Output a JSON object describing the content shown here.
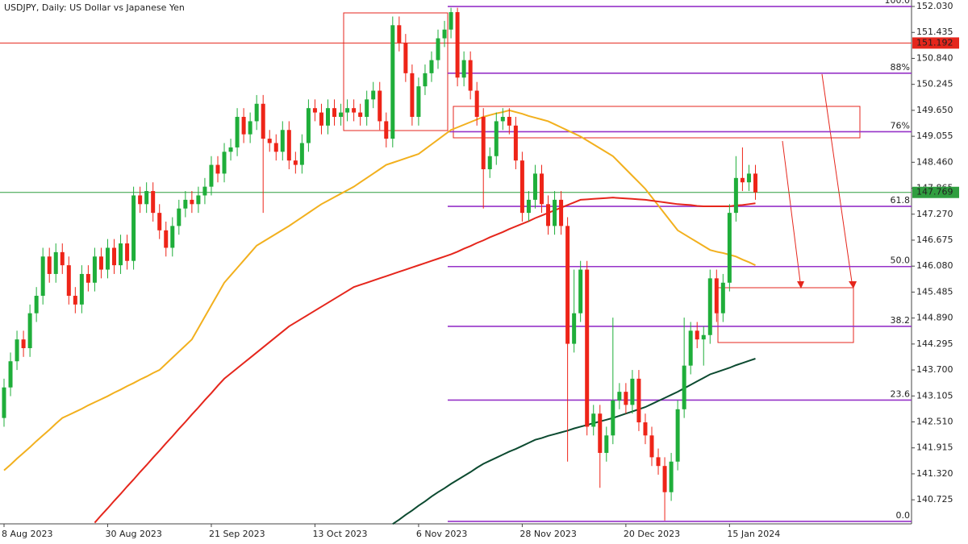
{
  "chart_data": {
    "type": "candlestick",
    "title": "USDJPY, Daily:  US Dollar vs Japanese Yen",
    "categories": [
      "8 Aug 2023",
      null,
      null,
      null,
      null,
      null,
      null,
      null,
      null,
      null,
      null,
      null,
      null,
      null,
      null,
      null,
      "30 Aug 2023",
      null,
      null,
      null,
      null,
      null,
      null,
      null,
      null,
      null,
      null,
      null,
      null,
      null,
      null,
      null,
      "21 Sep 2023",
      null,
      null,
      null,
      null,
      null,
      null,
      null,
      null,
      null,
      null,
      null,
      null,
      null,
      null,
      null,
      "13 Oct 2023",
      null,
      null,
      null,
      null,
      null,
      null,
      null,
      null,
      null,
      null,
      null,
      null,
      null,
      null,
      null,
      "6 Nov 2023",
      null,
      null,
      null,
      null,
      null,
      null,
      null,
      null,
      null,
      null,
      null,
      null,
      null,
      null,
      null,
      "28 Nov 2023",
      null,
      null,
      null,
      null,
      null,
      null,
      null,
      null,
      null,
      null,
      null,
      null,
      null,
      null,
      null,
      "20 Dec 2023",
      null,
      null,
      null,
      null,
      null,
      null,
      null,
      null,
      null,
      null,
      null,
      null,
      null,
      null,
      null,
      "15 Jan 2024",
      null,
      null,
      null,
      null
    ],
    "open": [
      142.6,
      143.3,
      143.9,
      144.4,
      144.2,
      145.0,
      145.4,
      146.3,
      145.9,
      146.4,
      146.1,
      145.4,
      145.2,
      145.9,
      145.7,
      146.3,
      146.0,
      146.5,
      146.1,
      146.6,
      146.2,
      147.7,
      147.5,
      147.8,
      147.3,
      146.9,
      146.5,
      147.0,
      147.4,
      147.6,
      147.5,
      147.7,
      147.9,
      148.4,
      148.2,
      148.7,
      148.8,
      149.5,
      149.1,
      149.4,
      149.8,
      149.0,
      148.9,
      148.7,
      149.2,
      148.5,
      148.4,
      148.9,
      149.7,
      149.6,
      149.3,
      149.7,
      149.5,
      149.6,
      149.7,
      149.6,
      149.5,
      149.9,
      150.1,
      149.4,
      149.0,
      151.6,
      151.2,
      150.5,
      149.5,
      150.2,
      150.5,
      150.8,
      151.3,
      151.5,
      151.9,
      150.4,
      150.8,
      150.1,
      149.5,
      148.3,
      148.6,
      149.4,
      149.5,
      149.3,
      148.5,
      147.3,
      147.6,
      148.2,
      147.5,
      147.0,
      147.6,
      147.0,
      144.3,
      145.0,
      146.0,
      142.4,
      142.7,
      141.8,
      142.2,
      143.0,
      143.2,
      142.9,
      143.5,
      142.5,
      142.2,
      141.7,
      141.5,
      140.9,
      141.6,
      142.8,
      143.8,
      144.6,
      144.4,
      144.5,
      145.8,
      145.0,
      145.7,
      147.3,
      148.1,
      148.0,
      148.2
    ],
    "high": [
      143.5,
      144.1,
      144.6,
      144.6,
      145.2,
      145.6,
      146.5,
      146.5,
      146.6,
      146.6,
      146.3,
      145.6,
      146.1,
      146.1,
      146.5,
      146.5,
      146.7,
      146.7,
      146.8,
      146.8,
      147.9,
      147.9,
      148.0,
      148.0,
      147.5,
      147.1,
      147.2,
      147.6,
      147.8,
      147.8,
      147.9,
      148.1,
      148.6,
      148.6,
      148.9,
      149.0,
      149.7,
      149.7,
      149.6,
      150.0,
      150.0,
      149.2,
      149.1,
      149.4,
      149.4,
      148.7,
      149.1,
      149.9,
      149.9,
      149.8,
      149.9,
      149.9,
      149.8,
      149.9,
      149.9,
      149.8,
      150.1,
      150.3,
      150.3,
      149.6,
      151.8,
      151.8,
      151.4,
      150.7,
      150.4,
      150.7,
      151.0,
      151.5,
      151.7,
      152.0,
      152.0,
      151.0,
      151.0,
      150.3,
      149.7,
      148.8,
      149.6,
      149.7,
      149.7,
      149.5,
      148.7,
      147.8,
      148.4,
      148.4,
      147.7,
      147.8,
      147.8,
      147.2,
      146.0,
      146.2,
      146.2,
      142.9,
      142.9,
      142.4,
      144.9,
      143.4,
      143.4,
      143.7,
      143.7,
      142.7,
      142.4,
      141.9,
      141.7,
      141.8,
      143.0,
      144.9,
      144.8,
      144.8,
      144.7,
      146.0,
      146.0,
      145.9,
      147.5,
      148.6,
      148.8,
      148.4,
      148.4
    ],
    "low": [
      142.4,
      143.1,
      143.7,
      144.0,
      144.0,
      144.8,
      145.2,
      145.7,
      145.7,
      145.9,
      145.2,
      145.0,
      145.0,
      145.5,
      145.5,
      145.8,
      145.8,
      145.9,
      145.9,
      146.0,
      146.0,
      147.3,
      147.3,
      147.1,
      146.7,
      146.3,
      146.3,
      146.8,
      147.2,
      147.3,
      147.3,
      147.5,
      147.7,
      148.0,
      148.0,
      148.5,
      148.6,
      148.9,
      148.9,
      149.2,
      147.3,
      148.7,
      148.5,
      148.5,
      148.3,
      148.2,
      148.2,
      148.7,
      149.4,
      149.1,
      149.1,
      149.3,
      149.3,
      149.4,
      149.4,
      149.3,
      149.3,
      149.7,
      149.2,
      148.8,
      148.8,
      151.0,
      150.3,
      149.3,
      149.3,
      150.0,
      150.3,
      150.6,
      151.1,
      151.3,
      150.2,
      150.2,
      149.9,
      149.3,
      147.4,
      148.1,
      148.4,
      149.2,
      149.1,
      148.3,
      147.1,
      147.1,
      147.4,
      147.3,
      146.8,
      146.8,
      146.8,
      141.6,
      144.1,
      144.8,
      142.2,
      142.2,
      141.0,
      141.6,
      142.0,
      142.8,
      142.7,
      142.7,
      142.3,
      142.0,
      141.5,
      141.3,
      140.25,
      140.7,
      141.4,
      142.6,
      143.6,
      144.2,
      143.8,
      144.3,
      144.8,
      144.8,
      145.5,
      147.1,
      147.8,
      147.8,
      147.6
    ],
    "close": [
      143.3,
      143.9,
      144.4,
      144.2,
      145.0,
      145.4,
      146.3,
      145.9,
      146.4,
      146.1,
      145.4,
      145.2,
      145.9,
      145.7,
      146.3,
      146.0,
      146.5,
      146.1,
      146.6,
      146.2,
      147.7,
      147.5,
      147.8,
      147.3,
      146.9,
      146.5,
      147.0,
      147.4,
      147.6,
      147.5,
      147.7,
      147.9,
      148.4,
      148.2,
      148.7,
      148.8,
      149.5,
      149.1,
      149.4,
      149.8,
      149.0,
      148.9,
      148.7,
      149.2,
      148.5,
      148.4,
      148.9,
      149.7,
      149.6,
      149.3,
      149.7,
      149.5,
      149.6,
      149.7,
      149.6,
      149.5,
      149.9,
      150.1,
      149.4,
      149.0,
      151.6,
      151.2,
      150.5,
      149.5,
      150.2,
      150.5,
      150.8,
      151.3,
      151.5,
      151.9,
      150.4,
      150.8,
      150.1,
      149.5,
      148.3,
      148.6,
      149.4,
      149.5,
      149.3,
      148.5,
      147.3,
      147.6,
      148.2,
      147.5,
      147.0,
      147.6,
      147.0,
      144.3,
      145.0,
      146.0,
      142.4,
      142.7,
      141.8,
      142.2,
      143.0,
      143.2,
      142.9,
      143.5,
      142.5,
      142.2,
      141.7,
      141.5,
      140.9,
      141.6,
      142.8,
      143.8,
      144.6,
      144.4,
      144.5,
      145.8,
      145.0,
      145.7,
      147.3,
      148.1,
      148.0,
      148.2,
      147.77
    ],
    "up_color": "#1fae3a",
    "down_color": "#ee2418",
    "ylim": [
      140.174,
      152.178
    ],
    "yticks": [
      {
        "value": 152.03,
        "label": "152.030"
      },
      151.435,
      {
        "value": 150.84,
        "label": "150.840"
      },
      150.245,
      {
        "value": 149.65,
        "label": "149.650"
      },
      149.055,
      {
        "value": 148.46,
        "label": "148.460"
      },
      147.865,
      {
        "value": 147.27,
        "label": "147.270"
      },
      146.675,
      {
        "value": 146.08,
        "label": "146.080"
      },
      145.485,
      {
        "value": 144.89,
        "label": "144.890"
      },
      144.295,
      {
        "value": 143.7,
        "label": "143.700"
      },
      143.105,
      {
        "value": 142.51,
        "label": "142.510"
      },
      141.915,
      {
        "value": 141.32,
        "label": "141.320"
      },
      140.725
    ],
    "moving_averages": [
      {
        "color": "#f2b01e",
        "values": [
          141.4,
          141.53,
          141.67,
          141.8,
          141.93,
          142.07,
          142.2,
          142.33,
          142.47,
          142.6,
          142.67,
          142.74,
          142.81,
          142.89,
          142.96,
          143.03,
          143.1,
          143.18,
          143.25,
          143.33,
          143.4,
          143.48,
          143.55,
          143.63,
          143.7,
          143.84,
          143.98,
          144.12,
          144.26,
          144.4,
          144.66,
          144.92,
          145.18,
          145.44,
          145.7,
          145.87,
          146.04,
          146.21,
          146.38,
          146.55,
          146.64,
          146.73,
          146.82,
          146.91,
          147.0,
          147.1,
          147.2,
          147.3,
          147.4,
          147.5,
          147.58,
          147.66,
          147.74,
          147.82,
          147.9,
          148.0,
          148.1,
          148.2,
          148.3,
          148.4,
          148.45,
          148.5,
          148.55,
          148.6,
          148.65,
          148.76,
          148.87,
          148.98,
          149.09,
          149.2,
          149.26,
          149.32,
          149.38,
          149.44,
          149.5,
          149.54,
          149.58,
          149.61,
          149.65,
          149.61,
          149.57,
          149.52,
          149.48,
          149.44,
          149.4,
          149.33,
          149.26,
          149.19,
          149.12,
          149.05,
          148.96,
          148.87,
          148.78,
          148.69,
          148.6,
          148.45,
          148.3,
          148.15,
          148.0,
          147.85,
          147.66,
          147.47,
          147.28,
          147.09,
          146.9,
          146.81,
          146.72,
          146.63,
          146.54,
          146.45,
          146.41,
          146.38,
          146.34,
          146.3,
          146.23,
          146.17,
          146.1
        ]
      },
      {
        "color": "#e5261c",
        "values": [
          null,
          null,
          null,
          null,
          null,
          null,
          null,
          null,
          null,
          null,
          null,
          null,
          null,
          null,
          140.2,
          140.37,
          140.53,
          140.7,
          140.86,
          141.03,
          141.19,
          141.36,
          141.52,
          141.69,
          141.85,
          142.02,
          142.18,
          142.35,
          142.51,
          142.68,
          142.84,
          143.01,
          143.17,
          143.34,
          143.5,
          143.62,
          143.74,
          143.86,
          143.98,
          144.1,
          144.22,
          144.34,
          144.46,
          144.58,
          144.7,
          144.79,
          144.88,
          144.97,
          145.06,
          145.15,
          145.24,
          145.33,
          145.42,
          145.51,
          145.6,
          145.65,
          145.7,
          145.75,
          145.8,
          145.85,
          145.9,
          145.95,
          146.0,
          146.05,
          146.1,
          146.15,
          146.2,
          146.25,
          146.3,
          146.35,
          146.41,
          146.48,
          146.54,
          146.61,
          146.67,
          146.74,
          146.8,
          146.86,
          146.93,
          146.99,
          147.05,
          147.11,
          147.18,
          147.24,
          147.3,
          147.36,
          147.42,
          147.48,
          147.54,
          147.6,
          147.61,
          147.62,
          147.63,
          147.64,
          147.65,
          147.64,
          147.63,
          147.62,
          147.61,
          147.6,
          147.58,
          147.56,
          147.54,
          147.52,
          147.5,
          147.49,
          147.48,
          147.46,
          147.45,
          147.45,
          147.45,
          147.45,
          147.45,
          147.47,
          147.48,
          147.5,
          147.52
        ]
      },
      {
        "color": "#0c4a30",
        "values": [
          null,
          null,
          null,
          null,
          null,
          null,
          null,
          null,
          null,
          null,
          null,
          null,
          null,
          null,
          null,
          null,
          null,
          null,
          null,
          null,
          null,
          null,
          null,
          null,
          null,
          null,
          null,
          null,
          null,
          null,
          null,
          null,
          null,
          null,
          null,
          null,
          null,
          null,
          null,
          null,
          null,
          null,
          null,
          null,
          null,
          null,
          null,
          null,
          null,
          null,
          null,
          null,
          null,
          null,
          null,
          null,
          null,
          null,
          null,
          null,
          140.17,
          140.27,
          140.38,
          140.48,
          140.59,
          140.69,
          140.8,
          140.9,
          140.99,
          141.09,
          141.18,
          141.27,
          141.36,
          141.46,
          141.55,
          141.62,
          141.69,
          141.76,
          141.83,
          141.89,
          141.96,
          142.03,
          142.1,
          142.14,
          142.19,
          142.23,
          142.27,
          142.31,
          142.36,
          142.4,
          142.44,
          142.48,
          142.52,
          142.56,
          142.6,
          142.65,
          142.7,
          142.75,
          142.8,
          142.85,
          142.92,
          142.99,
          143.06,
          143.13,
          143.2,
          143.28,
          143.36,
          143.44,
          143.52,
          143.6,
          143.65,
          143.7,
          143.75,
          143.81,
          143.86,
          143.91,
          143.96
        ]
      }
    ],
    "levels": [
      {
        "value": 151.192,
        "color": "#e5261c"
      },
      {
        "value": 147.769,
        "color": "#2f9e3f"
      }
    ],
    "fibonacci": {
      "color": "#9633c8",
      "labels": [
        "100.0",
        "88%",
        "76%",
        "61.8",
        "50.0",
        "38.2",
        "23.6",
        "0.0"
      ],
      "values": [
        152.03,
        150.5,
        149.16,
        147.45,
        146.07,
        144.7,
        143.01,
        140.23
      ]
    }
  }
}
